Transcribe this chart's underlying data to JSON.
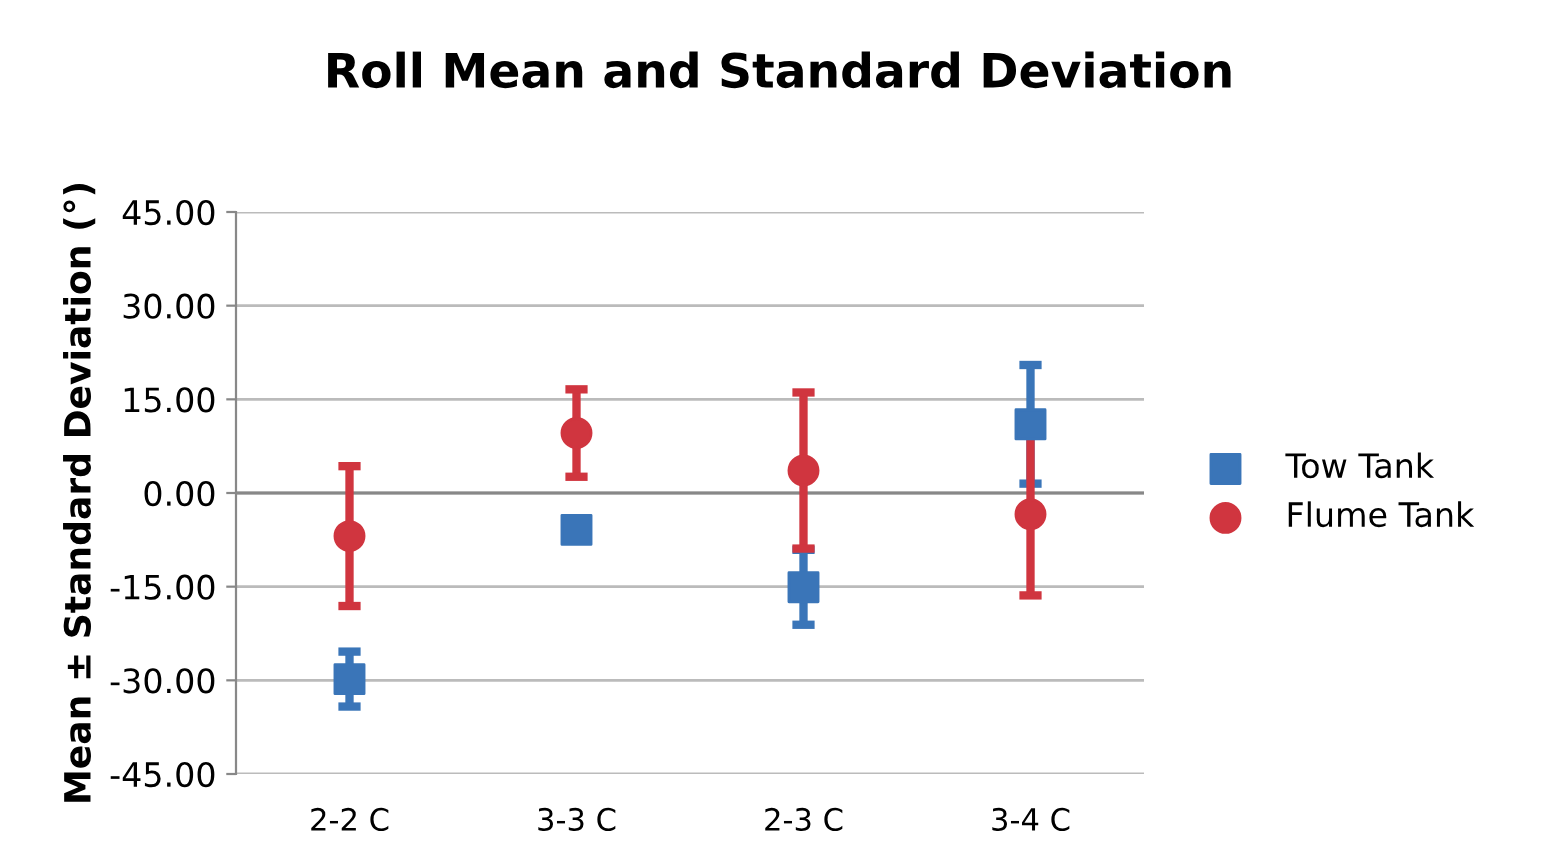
{
  "chart_data": {
    "type": "scatter",
    "title": "Roll Mean and Standard Deviation",
    "ylabel": "Mean ± Standard Deviation (°)",
    "categories": [
      "2-2 C",
      "3-3 C",
      "2-3 C",
      "3-4 C"
    ],
    "series": [
      {
        "name": "Tow Tank",
        "color": "#3a75b8",
        "marker": "square",
        "values": [
          -29.8,
          -5.9,
          -15.1,
          11.0
        ],
        "errors": [
          4.4,
          null,
          6.0,
          9.5
        ]
      },
      {
        "name": "Flume Tank",
        "color": "#d0353f",
        "marker": "circle",
        "values": [
          -6.9,
          9.6,
          3.6,
          -3.4
        ],
        "errors": [
          11.2,
          7.0,
          12.5,
          13.0
        ]
      }
    ],
    "ylim": [
      -45,
      45
    ],
    "yticks": [
      {
        "value": -45,
        "label": "-45.00"
      },
      {
        "value": -30,
        "label": "-30.00"
      },
      {
        "value": -15,
        "label": "-15.00"
      },
      {
        "value": 0,
        "label": "0.00"
      },
      {
        "value": 15,
        "label": "15.00"
      },
      {
        "value": 30,
        "label": "30.00"
      },
      {
        "value": 45,
        "label": "45.00"
      }
    ],
    "grid": "y",
    "legend": "right"
  }
}
